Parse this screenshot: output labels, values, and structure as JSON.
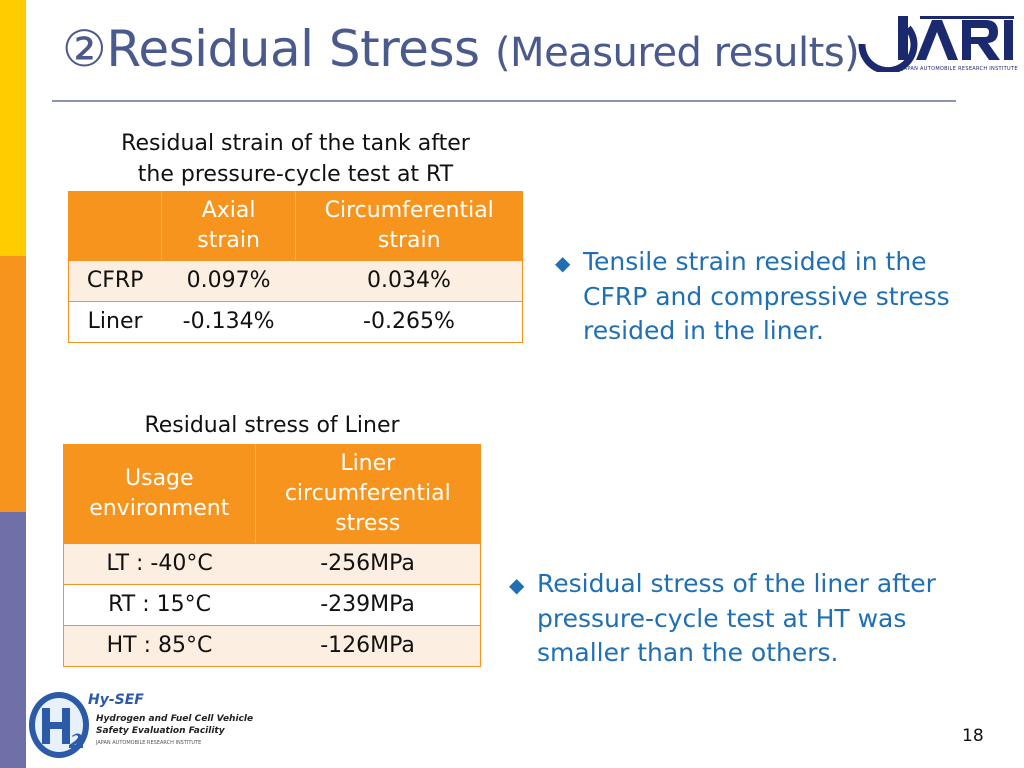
{
  "slide": {
    "title_main": "②Residual Stress",
    "title_sub": "(Measured results)",
    "page_number": "18",
    "colors": {
      "title": "#4b5a8c",
      "table_header": "#f7941d",
      "bullet_text": "#1f6fb4",
      "strip": [
        "#ffcc00",
        "#f7941d",
        "#7070a8"
      ]
    }
  },
  "logo_jari": {
    "icon": "jari-logo",
    "subtitle": "JAPAN AUTOMOBILE RESEARCH INSTITUTE"
  },
  "logo_hysef": {
    "icon": "hysef-h2-logo",
    "name": "Hy-SEF",
    "line1": "Hydrogen and Fuel Cell Vehicle",
    "line2": "Safety Evaluation Facility",
    "line3": "JAPAN AUTOMOBILE RESEARCH INSTITUTE"
  },
  "strain_table": {
    "caption_line1": "Residual strain of the tank after",
    "caption_line2": "the pressure-cycle test at RT",
    "headers": [
      "",
      "Axial strain",
      "Circumferential strain"
    ],
    "rows": [
      {
        "label": "CFRP",
        "axial": "0.097%",
        "circ": "0.034%"
      },
      {
        "label": "Liner",
        "axial": "-0.134%",
        "circ": "-0.265%"
      }
    ]
  },
  "stress_table": {
    "caption": "Residual stress of Liner",
    "headers": [
      "Usage environment",
      "Liner circumferential stress"
    ],
    "rows": [
      {
        "env": "LT : -40°C",
        "stress": "-256MPa"
      },
      {
        "env": "RT : 15°C",
        "stress": "-239MPa"
      },
      {
        "env": "HT : 85°C",
        "stress": "-126MPa"
      }
    ]
  },
  "bullets": [
    {
      "icon": "diamond-bullet-icon",
      "marker": "◆",
      "text": "Tensile strain resided in the CFRP and compressive stress resided in the liner."
    },
    {
      "icon": "diamond-bullet-icon",
      "marker": "◆",
      "text": "Residual stress of the liner after pressure-cycle test at HT was smaller than the others."
    }
  ]
}
